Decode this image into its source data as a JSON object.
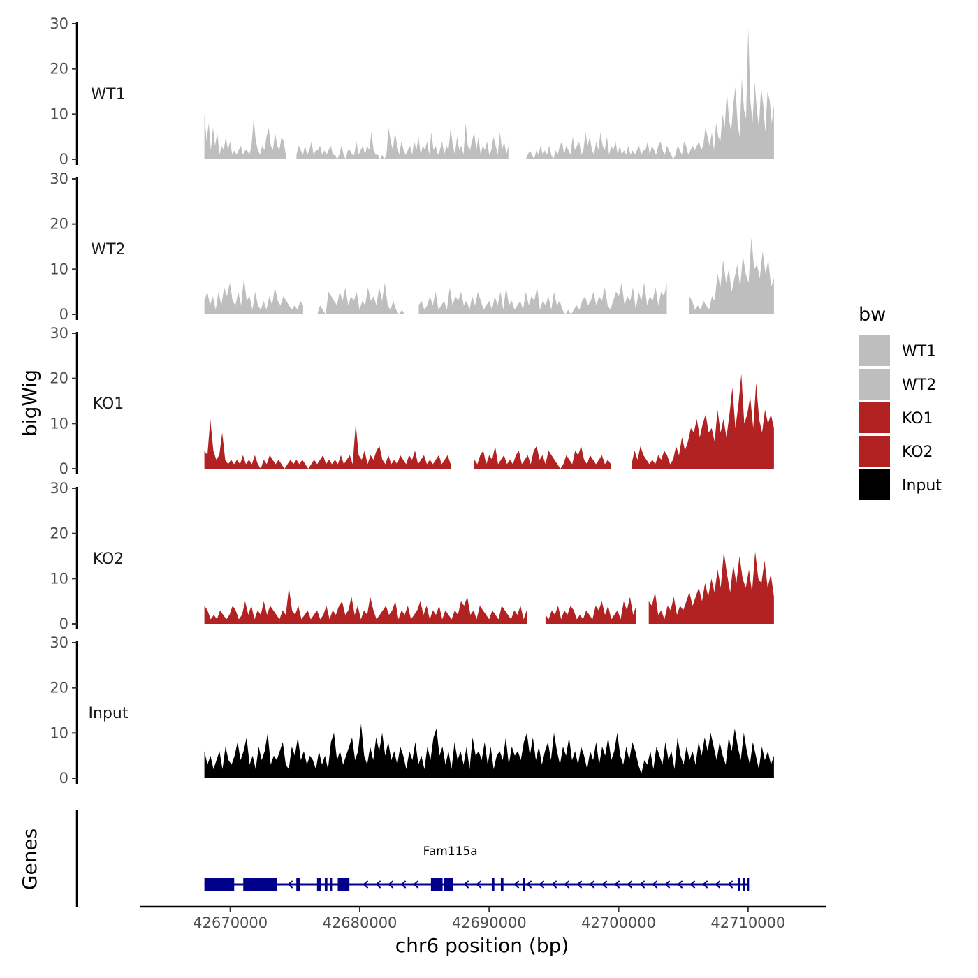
{
  "chart_data": {
    "type": "area",
    "title": "",
    "y_axis_title": "bigWig",
    "x_axis_title": "chr6 position (bp)",
    "genes_axis_title": "Genes",
    "ylim": [
      0,
      30
    ],
    "y_ticks": [
      0,
      10,
      20,
      30
    ],
    "x_range": [
      42668000,
      42712000
    ],
    "x_axis_limits": [
      42663000,
      42716000
    ],
    "x_ticks": [
      42670000,
      42680000,
      42690000,
      42700000,
      42710000
    ],
    "legend": {
      "title": "bw",
      "position": "right",
      "entries": [
        {
          "name": "WT1",
          "color": "#BEBEBE"
        },
        {
          "name": "WT2",
          "color": "#BEBEBE"
        },
        {
          "name": "KO1",
          "color": "#B22222"
        },
        {
          "name": "KO2",
          "color": "#B22222"
        },
        {
          "name": "Input",
          "color": "#000000"
        }
      ]
    },
    "series": [
      {
        "name": "WT1",
        "color": "#BEBEBE",
        "values": [
          10,
          4,
          8,
          2,
          7,
          3,
          6,
          1,
          3,
          2,
          5,
          2,
          4,
          1,
          2,
          1,
          2,
          3,
          1,
          2,
          2,
          1,
          3,
          9,
          4,
          2,
          1,
          3,
          2,
          5,
          7,
          3,
          2,
          6,
          3,
          2,
          5,
          4,
          1,
          0,
          0,
          0,
          4,
          1,
          3,
          2,
          1,
          3,
          1,
          2,
          4,
          1,
          2,
          2,
          3,
          1,
          2,
          1,
          2,
          3,
          1,
          1,
          0,
          1,
          3,
          1,
          0,
          2,
          2,
          1,
          1,
          4,
          1,
          2,
          3,
          1,
          3,
          2,
          6,
          2,
          1,
          1,
          0,
          1,
          0,
          1,
          7,
          4,
          2,
          6,
          3,
          1,
          4,
          2,
          1,
          2,
          3,
          1,
          4,
          2,
          5,
          1,
          3,
          2,
          4,
          1,
          6,
          2,
          3,
          1,
          2,
          4,
          1,
          3,
          2,
          7,
          3,
          1,
          5,
          2,
          3,
          1,
          8,
          3,
          2,
          4,
          6,
          2,
          5,
          1,
          3,
          2,
          4,
          1,
          2,
          5,
          3,
          1,
          6,
          2,
          4,
          1,
          3,
          1,
          2,
          1,
          3,
          1,
          0,
          1,
          0,
          1,
          2,
          1,
          0,
          2,
          1,
          3,
          1,
          2,
          1,
          3,
          1,
          0,
          2,
          1,
          3,
          4,
          1,
          3,
          2,
          1,
          5,
          2,
          3,
          4,
          1,
          2,
          6,
          3,
          5,
          2,
          1,
          4,
          2,
          6,
          3,
          2,
          5,
          1,
          3,
          2,
          4,
          1,
          3,
          1,
          2,
          1,
          3,
          1,
          2,
          1,
          2,
          3,
          1,
          2,
          2,
          4,
          1,
          3,
          2,
          1,
          3,
          4,
          2,
          1,
          3,
          2,
          1,
          0,
          1,
          3,
          2,
          1,
          4,
          3,
          1,
          2,
          3,
          2,
          3,
          4,
          2,
          3,
          7,
          5,
          3,
          6,
          2,
          8,
          5,
          4,
          10,
          7,
          15,
          9,
          6,
          12,
          16,
          8,
          5,
          18,
          11,
          9,
          29,
          13,
          8,
          17,
          11,
          7,
          16,
          12,
          6,
          15,
          13,
          8,
          12
        ],
        "gaps": [
          [
            39,
            42
          ],
          [
            143,
            149
          ]
        ]
      },
      {
        "name": "WT2",
        "color": "#BEBEBE",
        "values": [
          3,
          5,
          2,
          4,
          1,
          5,
          2,
          6,
          4,
          7,
          3,
          2,
          5,
          2,
          8,
          3,
          4,
          1,
          5,
          2,
          1,
          3,
          1,
          4,
          2,
          6,
          3,
          2,
          4,
          3,
          2,
          1,
          2,
          1,
          3,
          2,
          7,
          1,
          0,
          1,
          0,
          2,
          1,
          0,
          5,
          4,
          3,
          2,
          5,
          3,
          6,
          2,
          4,
          3,
          5,
          1,
          3,
          2,
          6,
          3,
          4,
          2,
          6,
          3,
          7,
          2,
          1,
          3,
          1,
          0,
          1,
          0,
          7,
          3,
          1,
          4,
          2,
          3,
          1,
          2,
          4,
          2,
          5,
          1,
          2,
          3,
          1,
          6,
          2,
          4,
          3,
          5,
          2,
          3,
          1,
          4,
          2,
          5,
          3,
          1,
          2,
          3,
          1,
          4,
          2,
          5,
          1,
          6,
          2,
          3,
          1,
          2,
          3,
          1,
          5,
          2,
          4,
          3,
          6,
          1,
          3,
          2,
          4,
          1,
          5,
          2,
          3,
          1,
          0,
          1,
          0,
          1,
          2,
          1,
          3,
          4,
          2,
          3,
          5,
          2,
          4,
          3,
          6,
          2,
          1,
          3,
          5,
          4,
          7,
          2,
          4,
          3,
          6,
          1,
          5,
          3,
          7,
          2,
          4,
          3,
          6,
          2,
          5,
          4,
          7,
          3,
          2,
          6,
          4,
          1,
          3,
          2,
          4,
          3,
          1,
          2,
          1,
          3,
          2,
          1,
          4,
          3,
          9,
          6,
          12,
          7,
          10,
          5,
          8,
          11,
          6,
          13,
          9,
          7,
          17,
          10,
          11,
          8,
          14,
          9,
          12,
          6,
          8
        ],
        "gaps": [
          [
            36,
            39
          ],
          [
            72,
            75
          ],
          [
            165,
            171
          ]
        ]
      },
      {
        "name": "KO1",
        "color": "#B22222",
        "values": [
          4,
          3,
          11,
          4,
          2,
          3,
          8,
          2,
          1,
          2,
          1,
          2,
          1,
          3,
          1,
          2,
          1,
          3,
          1,
          0,
          2,
          1,
          3,
          2,
          1,
          2,
          1,
          0,
          1,
          2,
          1,
          2,
          1,
          2,
          1,
          0,
          1,
          2,
          1,
          2,
          3,
          1,
          2,
          1,
          2,
          1,
          3,
          1,
          2,
          3,
          1,
          10,
          3,
          2,
          4,
          1,
          3,
          2,
          4,
          5,
          2,
          1,
          3,
          1,
          2,
          1,
          3,
          2,
          1,
          3,
          2,
          4,
          1,
          2,
          3,
          1,
          2,
          1,
          2,
          3,
          1,
          2,
          3,
          1,
          2,
          4,
          1,
          2,
          3,
          1,
          0,
          2,
          1,
          3,
          4,
          1,
          3,
          2,
          5,
          1,
          2,
          3,
          1,
          2,
          1,
          3,
          4,
          1,
          2,
          3,
          1,
          4,
          5,
          2,
          3,
          1,
          4,
          3,
          2,
          1,
          0,
          1,
          3,
          2,
          1,
          4,
          3,
          5,
          2,
          1,
          3,
          2,
          1,
          2,
          3,
          1,
          2,
          1,
          0,
          1,
          2,
          1,
          3,
          2,
          1,
          4,
          2,
          5,
          3,
          2,
          1,
          2,
          1,
          3,
          2,
          4,
          3,
          1,
          2,
          5,
          3,
          7,
          4,
          6,
          9,
          8,
          11,
          7,
          10,
          12,
          8,
          9,
          6,
          13,
          8,
          11,
          7,
          12,
          18,
          9,
          14,
          21,
          10,
          12,
          16,
          9,
          19,
          11,
          8,
          13,
          10,
          12,
          9
        ],
        "gaps": [
          [
            84,
            90
          ],
          [
            138,
            143
          ]
        ]
      },
      {
        "name": "KO2",
        "color": "#B22222",
        "values": [
          4,
          3,
          1,
          2,
          1,
          3,
          2,
          1,
          2,
          4,
          3,
          1,
          2,
          5,
          2,
          4,
          1,
          3,
          2,
          5,
          2,
          4,
          3,
          2,
          1,
          3,
          2,
          8,
          3,
          2,
          4,
          1,
          2,
          3,
          1,
          2,
          3,
          1,
          2,
          4,
          1,
          3,
          2,
          4,
          5,
          2,
          3,
          6,
          2,
          4,
          1,
          3,
          2,
          6,
          3,
          1,
          2,
          3,
          4,
          2,
          3,
          5,
          1,
          3,
          2,
          4,
          1,
          2,
          3,
          5,
          2,
          4,
          1,
          3,
          2,
          4,
          1,
          3,
          2,
          1,
          3,
          2,
          5,
          4,
          6,
          2,
          3,
          1,
          4,
          3,
          2,
          1,
          3,
          2,
          1,
          4,
          3,
          2,
          1,
          3,
          2,
          4,
          1,
          3,
          2,
          1,
          0,
          1,
          0,
          2,
          1,
          3,
          2,
          4,
          1,
          3,
          2,
          4,
          3,
          1,
          2,
          1,
          3,
          2,
          1,
          4,
          3,
          5,
          2,
          4,
          1,
          2,
          3,
          1,
          5,
          3,
          6,
          2,
          4,
          1,
          3,
          2,
          5,
          4,
          7,
          2,
          3,
          1,
          4,
          3,
          6,
          2,
          4,
          3,
          5,
          7,
          4,
          6,
          8,
          5,
          9,
          6,
          10,
          7,
          12,
          8,
          16,
          11,
          7,
          13,
          9,
          15,
          10,
          8,
          12,
          7,
          16,
          10,
          9,
          14,
          8,
          11,
          6
        ],
        "gaps": [
          [
            104,
            108
          ],
          [
            139,
            141
          ]
        ]
      },
      {
        "name": "Input",
        "color": "#000000",
        "values": [
          6,
          3,
          5,
          2,
          4,
          6,
          2,
          7,
          4,
          3,
          5,
          8,
          4,
          6,
          9,
          3,
          5,
          2,
          7,
          4,
          6,
          10,
          3,
          5,
          4,
          6,
          8,
          3,
          2,
          7,
          5,
          9,
          4,
          6,
          3,
          5,
          4,
          2,
          6,
          3,
          5,
          2,
          8,
          10,
          4,
          6,
          3,
          5,
          7,
          9,
          4,
          6,
          12,
          5,
          3,
          7,
          4,
          9,
          6,
          10,
          5,
          8,
          4,
          6,
          3,
          7,
          5,
          2,
          6,
          4,
          8,
          3,
          5,
          2,
          7,
          4,
          9,
          11,
          5,
          7,
          3,
          6,
          2,
          8,
          4,
          6,
          3,
          7,
          2,
          9,
          5,
          6,
          4,
          8,
          3,
          7,
          2,
          5,
          6,
          4,
          9,
          3,
          7,
          5,
          6,
          4,
          8,
          10,
          5,
          9,
          4,
          7,
          3,
          6,
          8,
          4,
          10,
          6,
          3,
          7,
          5,
          9,
          4,
          6,
          3,
          7,
          5,
          2,
          6,
          4,
          8,
          3,
          7,
          5,
          9,
          4,
          6,
          10,
          5,
          3,
          7,
          4,
          8,
          6,
          3,
          1,
          4,
          3,
          6,
          2,
          7,
          5,
          3,
          8,
          4,
          6,
          2,
          9,
          5,
          3,
          7,
          4,
          6,
          3,
          8,
          5,
          9,
          6,
          10,
          7,
          4,
          8,
          5,
          3,
          9,
          6,
          11,
          7,
          4,
          10,
          6,
          3,
          8,
          5,
          2,
          7,
          4,
          6,
          3,
          5
        ],
        "gaps": []
      }
    ],
    "gene": {
      "name": "Fam115a",
      "strand": "-",
      "start": 42668000,
      "end": 42710000,
      "exons": [
        [
          42668000,
          42670300
        ],
        [
          42671000,
          42673600
        ],
        [
          42675100,
          42675400
        ],
        [
          42676700,
          42677000
        ],
        [
          42677300,
          42677500
        ],
        [
          42677700,
          42677800
        ],
        [
          42678300,
          42679200
        ],
        [
          42685500,
          42686400
        ],
        [
          42686500,
          42687200
        ],
        [
          42690200,
          42690400
        ],
        [
          42690900,
          42691100
        ],
        [
          42692600,
          42692700
        ],
        [
          42709200,
          42709300
        ],
        [
          42709600,
          42709700
        ]
      ]
    }
  }
}
